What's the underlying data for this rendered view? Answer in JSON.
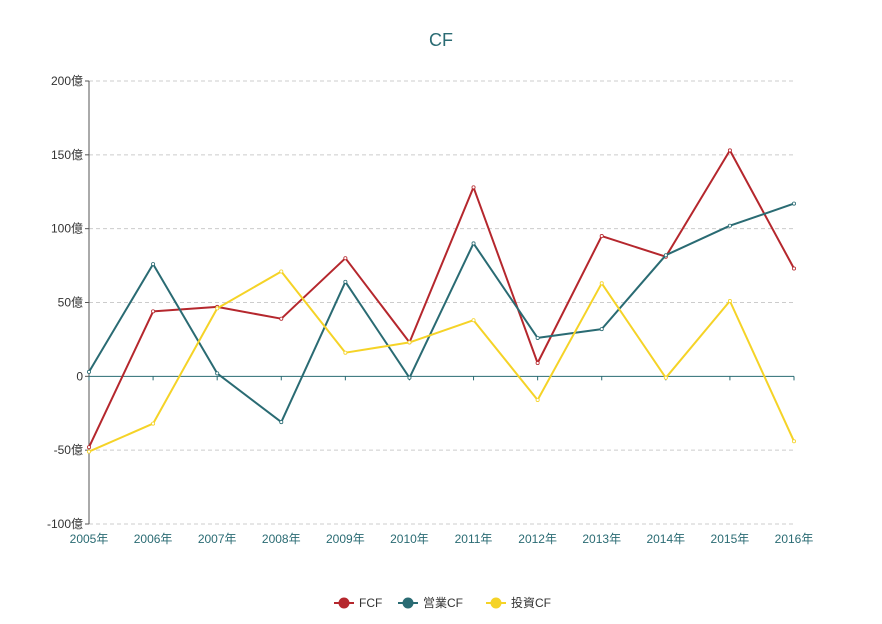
{
  "chart_data": {
    "type": "line",
    "title": "CF",
    "xlabel": "",
    "ylabel": "",
    "categories": [
      "2005年",
      "2006年",
      "2007年",
      "2008年",
      "2009年",
      "2010年",
      "2011年",
      "2012年",
      "2013年",
      "2014年",
      "2015年",
      "2016年"
    ],
    "ylim": [
      -100,
      200
    ],
    "yticks": [
      {
        "value": 200,
        "label": "200億"
      },
      {
        "value": 150,
        "label": "150億"
      },
      {
        "value": 100,
        "label": "100億"
      },
      {
        "value": 50,
        "label": "50億"
      },
      {
        "value": 0,
        "label": "0"
      },
      {
        "value": -50,
        "label": "-50億"
      },
      {
        "value": -100,
        "label": "-100億"
      }
    ],
    "grid": true,
    "legend_position": "bottom",
    "series": [
      {
        "name": "FCF",
        "color": "#b5272d",
        "values": [
          -48,
          44,
          47,
          39,
          80,
          23,
          128,
          9,
          95,
          81,
          153,
          73
        ]
      },
      {
        "name": "営業CF",
        "color": "#2a6b73",
        "values": [
          3,
          76,
          2,
          -31,
          64,
          -1,
          90,
          26,
          32,
          82,
          102,
          117
        ]
      },
      {
        "name": "投資CF",
        "color": "#f5d327",
        "values": [
          -51,
          -32,
          46,
          71,
          16,
          23,
          38,
          -16,
          63,
          -1,
          51,
          -44
        ]
      }
    ]
  }
}
